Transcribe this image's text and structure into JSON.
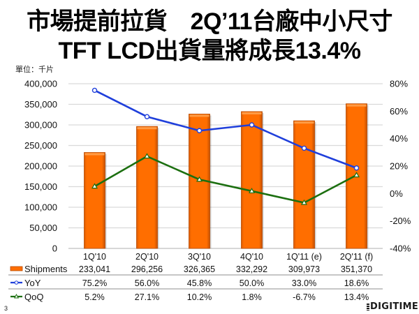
{
  "slide": {
    "title_line1": "市場提前拉貨　2Q’11台廠中小尺寸",
    "title_line2": "TFT LCD出貨量將成長13.4%",
    "unit_label": "單位：千片",
    "page_number": "3",
    "brand": "DIGITIMES"
  },
  "colors": {
    "shipments": "#FF6E00",
    "shipments_edge": "#B84A00",
    "yoy": "#1F3FDB",
    "qoq": "#1C6F10",
    "grid": "#D9D9D9"
  },
  "chart_data": {
    "type": "bar",
    "title": "市場提前拉貨　2Q’11台廠中小尺寸 TFT LCD出貨量將成長13.4%",
    "xlabel": "",
    "ylabel": "單位：千片",
    "y2label": "",
    "categories": [
      "1Q'10",
      "2Q'10",
      "3Q'10",
      "4Q'10",
      "1Q'11 (e)",
      "2Q'11 (f)"
    ],
    "series": [
      {
        "name": "Shipments",
        "type": "bar",
        "axis": "left",
        "values": [
          233041,
          296256,
          326365,
          332292,
          309973,
          351370
        ],
        "labels": [
          "233,041",
          "296,256",
          "326,365",
          "332,292",
          "309,973",
          "351,370"
        ]
      },
      {
        "name": "YoY",
        "type": "line",
        "axis": "right",
        "unit": "%",
        "values": [
          75.2,
          56.0,
          45.8,
          50.0,
          33.0,
          18.6
        ],
        "labels": [
          "75.2%",
          "56.0%",
          "45.8%",
          "50.0%",
          "33.0%",
          "18.6%"
        ]
      },
      {
        "name": "QoQ",
        "type": "line",
        "axis": "right",
        "unit": "%",
        "values": [
          5.2,
          27.1,
          10.2,
          1.8,
          -6.7,
          13.4
        ],
        "labels": [
          "5.2%",
          "27.1%",
          "10.2%",
          "1.8%",
          "-6.7%",
          "13.4%"
        ]
      }
    ],
    "y_left": {
      "min": 0,
      "max": 400000,
      "ticks": [
        {
          "value": 400000,
          "label": "400,000"
        },
        {
          "value": 350000,
          "label": "350,000"
        },
        {
          "value": 300000,
          "label": "300,000"
        },
        {
          "value": 250000,
          "label": "250,000"
        },
        {
          "value": 200000,
          "label": "200,000"
        },
        {
          "value": 150000,
          "label": "150,000"
        },
        {
          "value": 100000,
          "label": "100,000"
        },
        {
          "value": 50000,
          "label": "50,000"
        },
        {
          "value": 0,
          "label": "0"
        }
      ]
    },
    "y_right": {
      "min": -40,
      "max": 80,
      "ticks": [
        {
          "value": 80,
          "label": "80%"
        },
        {
          "value": 60,
          "label": "60%"
        },
        {
          "value": 40,
          "label": "40%"
        },
        {
          "value": 20,
          "label": "20%"
        },
        {
          "value": 0,
          "label": "0%"
        },
        {
          "value": -20,
          "label": "-20%"
        },
        {
          "value": -40,
          "label": "-40%"
        }
      ]
    },
    "grid": true,
    "legend": "bottom-left (data table)"
  }
}
